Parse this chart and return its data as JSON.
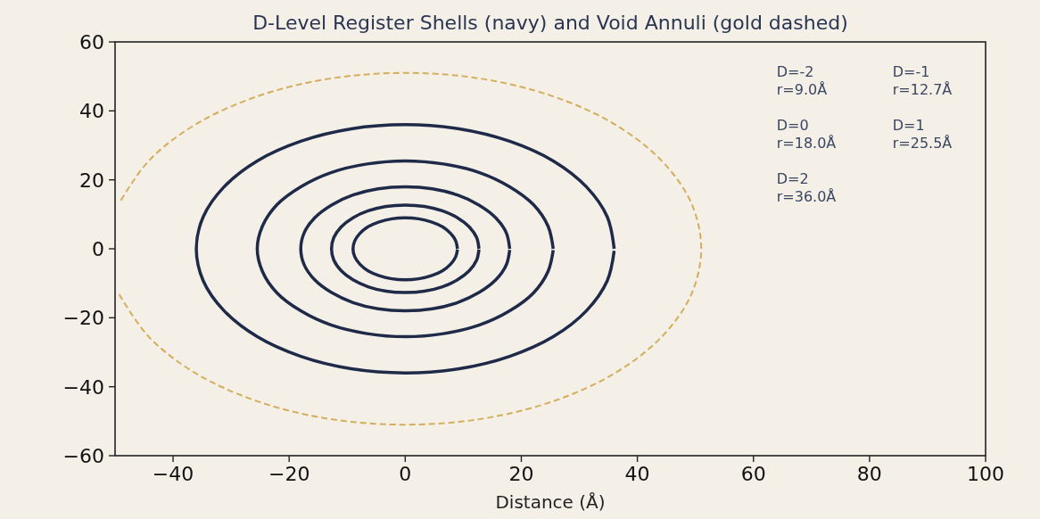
{
  "chart_data": {
    "type": "line",
    "title": "D-Level Register Shells (navy) and Void Annuli (gold dashed)",
    "xlabel": "Distance (Å)",
    "xlim": [
      -50,
      100
    ],
    "xticks": [
      -40,
      -20,
      0,
      20,
      40,
      60,
      80,
      100
    ],
    "ylim": [
      -60,
      60
    ],
    "yticks": [
      -60,
      -40,
      -20,
      0,
      20,
      40,
      60
    ],
    "grid": false,
    "annotations": [
      "D=-2\nr=9.0Å",
      "D=-1\nr=12.7Å",
      "D=0\nr=18.0Å",
      "D=1\nr=25.5Å",
      "D=2\nr=36.0Å"
    ],
    "series": [
      {
        "color": "#1e2a48",
        "line_style": "solid",
        "x": [
          9,
          8.7,
          7.8,
          6.4,
          4.5,
          2.3,
          0,
          -2.3,
          -4.5,
          -6.4,
          -7.8,
          -8.7,
          -9,
          -8.7,
          -7.8,
          -6.4,
          -4.5,
          -2.3,
          0,
          2.3,
          4.5,
          6.4,
          7.8,
          8.7,
          9
        ],
        "values": [
          0,
          2.3,
          4.5,
          6.4,
          7.8,
          8.7,
          9,
          8.7,
          7.8,
          6.4,
          4.5,
          2.3,
          0,
          -2.3,
          -4.5,
          -6.4,
          -7.8,
          -8.7,
          -9,
          -8.7,
          -7.8,
          -6.4,
          -4.5,
          -2.3,
          -0.2
        ]
      },
      {
        "color": "#1e2a48",
        "line_style": "solid",
        "x": [
          12.7,
          12.3,
          11,
          9,
          6.4,
          3.3,
          0,
          -3.3,
          -6.4,
          -9,
          -11,
          -12.3,
          -12.7,
          -12.3,
          -11,
          -9,
          -6.4,
          -3.3,
          0,
          3.3,
          6.4,
          9,
          11,
          12.3,
          12.7
        ],
        "values": [
          0,
          3.3,
          6.4,
          9,
          11,
          12.3,
          12.7,
          12.3,
          11,
          9,
          6.4,
          3.3,
          0,
          -3.3,
          -6.4,
          -9,
          -11,
          -12.3,
          -12.7,
          -12.3,
          -11,
          -9,
          -6.4,
          -3.3,
          -0.2
        ]
      },
      {
        "color": "#1e2a48",
        "line_style": "solid",
        "x": [
          18,
          17.4,
          15.6,
          12.7,
          9,
          4.7,
          0,
          -4.7,
          -9,
          -12.7,
          -15.6,
          -17.4,
          -18,
          -17.4,
          -15.6,
          -12.7,
          -9,
          -4.7,
          0,
          4.7,
          9,
          12.7,
          15.6,
          17.4,
          18
        ],
        "values": [
          0,
          4.7,
          9,
          12.7,
          15.6,
          17.4,
          18,
          17.4,
          15.6,
          12.7,
          9,
          4.7,
          0,
          -4.7,
          -9,
          -12.7,
          -15.6,
          -17.4,
          -18,
          -17.4,
          -15.6,
          -12.7,
          -9,
          -4.7,
          -0.3
        ]
      },
      {
        "color": "#1e2a48",
        "line_style": "solid",
        "x": [
          25.5,
          24.6,
          22.1,
          18,
          12.8,
          6.6,
          0,
          -6.6,
          -12.8,
          -18,
          -22.1,
          -24.6,
          -25.5,
          -24.6,
          -22.1,
          -18,
          -12.8,
          -6.6,
          0,
          6.6,
          12.8,
          18,
          22.1,
          24.6,
          25.5
        ],
        "values": [
          0,
          6.6,
          12.8,
          18,
          22.1,
          24.6,
          25.5,
          24.6,
          22.1,
          18,
          12.8,
          6.6,
          0,
          -6.6,
          -12.8,
          -18,
          -22.1,
          -24.6,
          -25.5,
          -24.6,
          -22.1,
          -18,
          -12.8,
          -6.6,
          -0.4
        ]
      },
      {
        "color": "#1e2a48",
        "line_style": "solid",
        "x": [
          36,
          34.8,
          31.2,
          25.5,
          18,
          9.3,
          0,
          -9.3,
          -18,
          -25.5,
          -31.2,
          -34.8,
          -36,
          -34.8,
          -31.2,
          -25.5,
          -18,
          -9.3,
          0,
          9.3,
          18,
          25.5,
          31.2,
          34.8,
          36
        ],
        "values": [
          0,
          9.3,
          18,
          25.5,
          31.2,
          34.8,
          36,
          34.8,
          31.2,
          25.5,
          18,
          9.3,
          0,
          -9.3,
          -18,
          -25.5,
          -31.2,
          -34.8,
          -36,
          -34.8,
          -31.2,
          -25.5,
          -18,
          -9.3,
          -0.6
        ]
      },
      {
        "color": "#d4ae5c",
        "line_style": "dashed",
        "x": [
          -49.3,
          -44.2,
          -36.1,
          -25.5,
          -13.2,
          0,
          13.2,
          25.5,
          36.1,
          44.2,
          49.3,
          51,
          49.3,
          44.2,
          36.1,
          25.5,
          13.2,
          0,
          -13.2,
          -25.5,
          -36.1,
          -44.2,
          -49.3
        ],
        "values": [
          -13.2,
          -25.5,
          -36.1,
          -44.2,
          -49.3,
          -51,
          -49.3,
          -44.2,
          -36.1,
          -25.5,
          -13.2,
          0,
          13.2,
          25.5,
          36.1,
          44.2,
          49.3,
          51,
          49.3,
          44.2,
          36.1,
          25.5,
          13.2
        ]
      }
    ]
  }
}
